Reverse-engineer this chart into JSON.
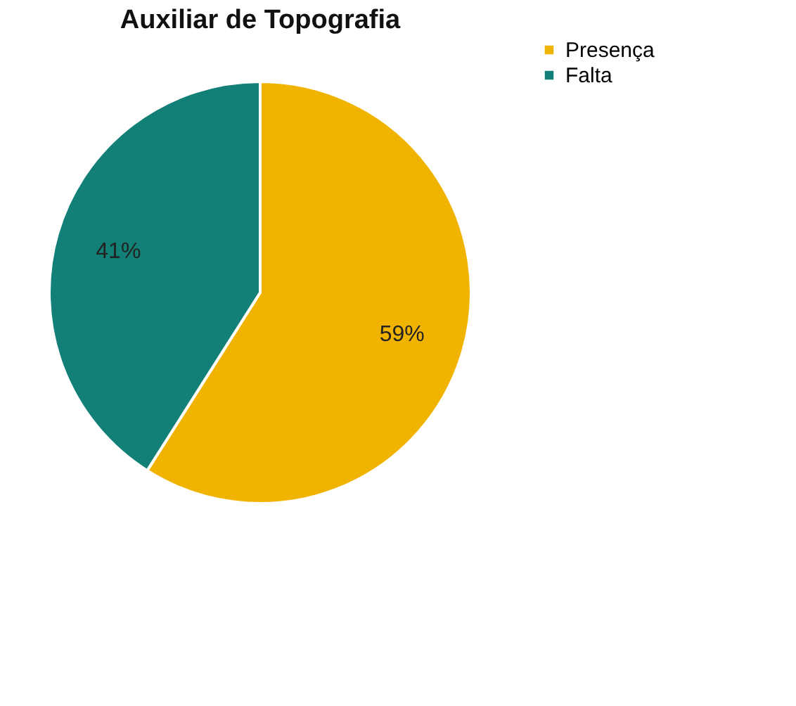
{
  "chart_data": {
    "type": "pie",
    "title": "Auxiliar de Topografia",
    "categories": [
      "Presença",
      "Falta"
    ],
    "values": [
      59,
      41
    ],
    "colors": [
      "#f0b400",
      "#138077"
    ],
    "value_labels": [
      "59%",
      "41%"
    ],
    "legend": "right"
  }
}
